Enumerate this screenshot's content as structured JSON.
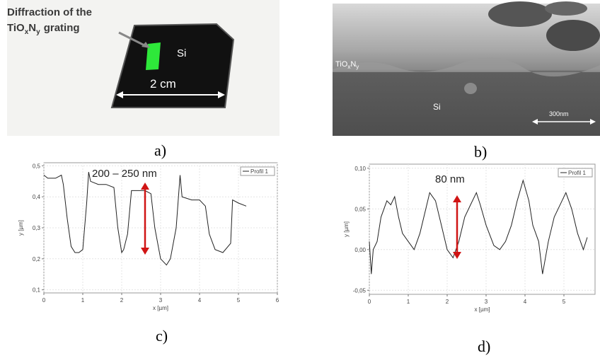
{
  "panels": {
    "a": {
      "caption": "a)",
      "label_line1": "Diffraction of the",
      "label_base1": "TiO",
      "label_sub1": "x",
      "label_base2": "N",
      "label_sub2": "y",
      "label_rest": "grating",
      "substrate": "Si",
      "scale": "2 cm"
    },
    "b": {
      "caption": "b)",
      "layer_base1": "TiO",
      "layer_sub1": "x",
      "layer_base2": "N",
      "layer_sub2": "y",
      "substrate": "Si",
      "scale": "300nm"
    },
    "c": {
      "caption": "c)"
    },
    "d": {
      "caption": "d)"
    }
  },
  "chart_data": [
    {
      "type": "line",
      "xlabel": "x [µm]",
      "ylabel": "y [µm]",
      "annotation": "200 – 250 nm",
      "xlim": [
        0,
        6
      ],
      "ylim": [
        0.09,
        0.51
      ],
      "xticks": [
        0,
        1,
        2,
        3,
        4,
        5,
        6
      ],
      "yticks": [
        {
          "value": 0.1,
          "label": "0,1"
        },
        {
          "value": 0.2,
          "label": "0,2"
        },
        {
          "value": 0.3,
          "label": "0,3"
        },
        {
          "value": 0.4,
          "label": "0,4"
        },
        {
          "value": 0.5,
          "label": "0,5"
        }
      ],
      "grid": true,
      "x": [
        0,
        0.1,
        0.3,
        0.45,
        0.5,
        0.6,
        0.7,
        0.8,
        0.9,
        1.0,
        1.1,
        1.15,
        1.2,
        1.4,
        1.6,
        1.8,
        1.9,
        2.0,
        2.05,
        2.15,
        2.25,
        2.4,
        2.6,
        2.75,
        2.85,
        3.0,
        3.15,
        3.25,
        3.4,
        3.5,
        3.55,
        3.8,
        4.0,
        4.15,
        4.25,
        4.4,
        4.6,
        4.8,
        4.85,
        5.0,
        5.2
      ],
      "series": [
        {
          "name": "Profil 1",
          "color": "#222222",
          "values": [
            0.47,
            0.46,
            0.46,
            0.47,
            0.44,
            0.33,
            0.24,
            0.22,
            0.22,
            0.23,
            0.38,
            0.48,
            0.45,
            0.44,
            0.44,
            0.43,
            0.3,
            0.22,
            0.23,
            0.28,
            0.42,
            0.42,
            0.42,
            0.41,
            0.3,
            0.2,
            0.18,
            0.2,
            0.3,
            0.47,
            0.4,
            0.39,
            0.39,
            0.37,
            0.28,
            0.23,
            0.22,
            0.25,
            0.39,
            0.38,
            0.37
          ]
        }
      ]
    },
    {
      "type": "line",
      "xlabel": "x [µm]",
      "ylabel": "y [µm]",
      "annotation": "80 nm",
      "xlim": [
        0,
        5.8
      ],
      "ylim": [
        -0.055,
        0.105
      ],
      "xticks": [
        0,
        1,
        2,
        3,
        4,
        5
      ],
      "yticks": [
        {
          "value": -0.05,
          "label": "-0,05"
        },
        {
          "value": 0,
          "label": "0,00"
        },
        {
          "value": 0.05,
          "label": "0,05"
        },
        {
          "value": 0.1,
          "label": "0,10"
        }
      ],
      "grid": true,
      "x": [
        0,
        0.05,
        0.1,
        0.2,
        0.3,
        0.45,
        0.55,
        0.65,
        0.75,
        0.85,
        1.0,
        1.15,
        1.3,
        1.45,
        1.55,
        1.7,
        1.85,
        2.0,
        2.15,
        2.3,
        2.45,
        2.6,
        2.75,
        2.85,
        3.0,
        3.2,
        3.35,
        3.5,
        3.65,
        3.8,
        3.95,
        4.1,
        4.2,
        4.35,
        4.45,
        4.6,
        4.75,
        4.95,
        5.05,
        5.2,
        5.35,
        5.5,
        5.6
      ],
      "series": [
        {
          "name": "Profil 1",
          "color": "#222222",
          "values": [
            0.01,
            -0.03,
            0.0,
            0.01,
            0.04,
            0.06,
            0.055,
            0.065,
            0.04,
            0.02,
            0.01,
            0.0,
            0.02,
            0.05,
            0.07,
            0.06,
            0.03,
            0.0,
            -0.01,
            0.01,
            0.04,
            0.055,
            0.07,
            0.055,
            0.03,
            0.005,
            0.0,
            0.01,
            0.03,
            0.06,
            0.085,
            0.06,
            0.03,
            0.01,
            -0.03,
            0.01,
            0.04,
            0.06,
            0.07,
            0.05,
            0.02,
            0.0,
            0.015
          ]
        }
      ]
    }
  ]
}
